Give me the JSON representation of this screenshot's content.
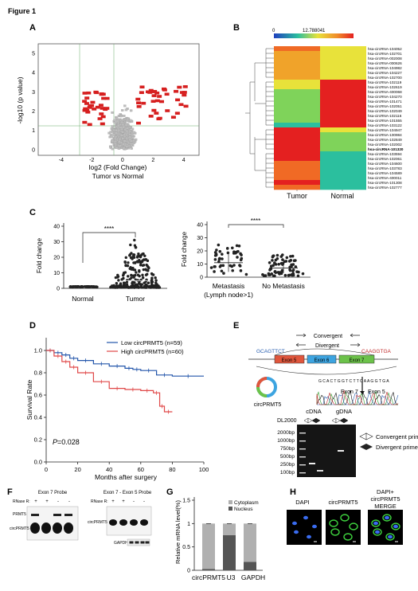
{
  "figure_title": "Figure 1",
  "panels": {
    "A": {
      "label": "A",
      "xlabel": "log2 (Fold Change)",
      "xsub": "Tumor vs Normal",
      "ylabel": "-log10 (p value)",
      "xticks": [
        "-4",
        "-2",
        "0",
        "2",
        "4"
      ],
      "yticks": [
        "0",
        "1",
        "2",
        "3",
        "4",
        "5"
      ]
    },
    "B": {
      "label": "B",
      "scale_min": "0",
      "scale_max": "12.788041",
      "col_labels": [
        "Tumor",
        "Normal"
      ],
      "genes": [
        "hsa-circRNA-104052",
        "hsa-circRNA-102701",
        "hsa-circRNA-002008",
        "hsa-circRNA-000626",
        "hsa-circRNA-104982",
        "hsa-circRNA-104227",
        "hsa-circRNA-102700",
        "hsa-circRNA-102119",
        "hsa-circRNA-102619",
        "hsa-circRNA-400068",
        "hsa-circRNA-104270",
        "hsa-circRNA-101471",
        "hsa-circRNA-102051",
        "hsa-circRNA-102049",
        "hsa-circRNA-102116",
        "hsa-circRNA-101555",
        "hsa-circRNA-103122",
        "hsa-circRNA-104947",
        "hsa-circRNA-100984",
        "hsa-circRNA-102849",
        "hsa-circRNA-102002",
        "hsa-circRNA-101320",
        "hsa-circRNA-103594",
        "hsa-circRNA-102061",
        "hsa-circRNA-104600",
        "hsa-circRNA-103783",
        "hsa-circRNA-104589",
        "hsa-circRNA-400011",
        "hsa-circRNA-101308",
        "hsa-circRNA-102777"
      ],
      "bold_gene": "hsa-circRNA-101320"
    },
    "C": {
      "label": "C",
      "left": {
        "ylabel": "Fold change",
        "yticks": [
          "0",
          "10",
          "20",
          "30",
          "40"
        ],
        "groups": [
          "Normal",
          "Tumor"
        ],
        "sig": "****"
      },
      "right": {
        "ylabel": "Fold change",
        "yticks": [
          "0",
          "10",
          "20",
          "30",
          "40"
        ],
        "groups": [
          "Metastasis",
          "No Metastasis"
        ],
        "group_sub": "(Lymph node>1)",
        "sig": "****"
      }
    },
    "D": {
      "label": "D",
      "ylabel": "Survival Rate",
      "xlabel": "Months after  surgery",
      "yticks": [
        "0.0",
        "0.2",
        "0.4",
        "0.6",
        "0.8",
        "1.0"
      ],
      "xticks": [
        "0",
        "20",
        "40",
        "60",
        "80",
        "100"
      ],
      "legend": [
        "Low circPRMT5 (n=59)",
        "High circPRMT5 (n=60)"
      ],
      "p_label": "P",
      "p_value": "=0.028",
      "colors": {
        "low": "#2255aa",
        "high": "#e04848"
      }
    },
    "E": {
      "label": "E",
      "convergent": "Convergent",
      "divergent": "Divergent",
      "seq_left": "GCAGTTCT",
      "seq_right": "CAAGGTGA",
      "exons": [
        "Exon 5",
        "Exon 6",
        "Exon 7"
      ],
      "circ_label": "circPRMT5",
      "junction_labels": [
        "Exon 7",
        "Exon 5"
      ],
      "chromatogram_seq": "G C A C T G G T C T T C A A G G T G A",
      "gel_top": [
        "cDNA",
        "gDNA"
      ],
      "ladder_name": "DL2000",
      "ladder": [
        "2000bp",
        "1000bp",
        "750bp",
        "500bp",
        "250bp",
        "100bp"
      ],
      "legend": [
        "Convergent primer",
        "Divergent primer"
      ]
    },
    "F": {
      "label": "F",
      "blot1_title": "Exon 7 Probe",
      "blot2_title": "Exon 7 - Exon 5 Probe",
      "rnase": "RNase R:",
      "rnase_signs1": [
        "+",
        "+",
        "-",
        "-"
      ],
      "rnase_signs2": [
        "+",
        "+",
        "-",
        "-"
      ],
      "bands1": [
        "PRMT5",
        "circPRMT5"
      ],
      "bands2": [
        "circPRMT5"
      ],
      "gapdh": "GAPDH"
    },
    "G": {
      "label": "G",
      "ylabel": "Relative mRNA level(%)",
      "yticks": [
        "0",
        "0.5",
        "1",
        "1.5"
      ],
      "legend": [
        "Cytoplasm",
        "Nucleus"
      ],
      "categories": [
        "circPRMT5",
        "U3",
        "GAPDH"
      ]
    },
    "H": {
      "label": "H",
      "headers": [
        "DAPI",
        "circPRMT5",
        "DAPI+\ncircPRMT5\nMERGE"
      ]
    }
  },
  "chart_data": [
    {
      "type": "scatter",
      "panel": "A",
      "xlabel": "log2 (Fold Change)",
      "ylabel": "-log10 (p value)",
      "xlim": [
        -5.5,
        5
      ],
      "ylim": [
        -0.3,
        5.5
      ],
      "note_series": [
        {
          "name": "not significant",
          "color": "#bdbdbd"
        },
        {
          "name": "significant",
          "color": "#d61f1f"
        }
      ]
    },
    {
      "type": "heatmap",
      "panel": "B",
      "columns": [
        "Tumor",
        "Normal"
      ],
      "range": [
        0,
        12.788041
      ]
    },
    {
      "type": "scatter",
      "panel": "C-left",
      "categories": [
        "Normal",
        "Tumor"
      ],
      "ylim": [
        0,
        40
      ],
      "approx_values": {
        "Normal": [
          1,
          1,
          1
        ],
        "Tumor": [
          2,
          5,
          8,
          12,
          20,
          30,
          32
        ]
      }
    },
    {
      "type": "scatter",
      "panel": "C-right",
      "categories": [
        "Metastasis",
        "No Metastasis"
      ],
      "ylim": [
        0,
        40
      ],
      "mean": [
        11,
        7
      ],
      "max": [
        25,
        17
      ]
    },
    {
      "type": "line",
      "panel": "D",
      "xlim": [
        0,
        100
      ],
      "ylim": [
        0,
        1
      ],
      "series": [
        {
          "name": "Low circPRMT5 (n=59)",
          "x": [
            0,
            5,
            10,
            15,
            20,
            30,
            40,
            50,
            55,
            60,
            70,
            80,
            100
          ],
          "y": [
            1,
            0.98,
            0.96,
            0.93,
            0.91,
            0.88,
            0.86,
            0.84,
            0.83,
            0.82,
            0.78,
            0.77,
            0.77
          ]
        },
        {
          "name": "High circPRMT5 (n=60)",
          "x": [
            0,
            5,
            10,
            15,
            20,
            30,
            40,
            50,
            60,
            68,
            72,
            75,
            80
          ],
          "y": [
            1,
            0.95,
            0.9,
            0.85,
            0.8,
            0.72,
            0.66,
            0.65,
            0.64,
            0.62,
            0.5,
            0.45,
            0.45
          ]
        }
      ]
    },
    {
      "type": "bar",
      "panel": "G",
      "categories": [
        "circPRMT5",
        "U3",
        "GAPDH"
      ],
      "series": [
        {
          "name": "Nucleus",
          "values": [
            0.03,
            0.75,
            0.18
          ]
        },
        {
          "name": "Cytoplasm",
          "values": [
            0.97,
            0.25,
            0.82
          ]
        }
      ],
      "ylim": [
        0,
        1.5
      ]
    }
  ]
}
